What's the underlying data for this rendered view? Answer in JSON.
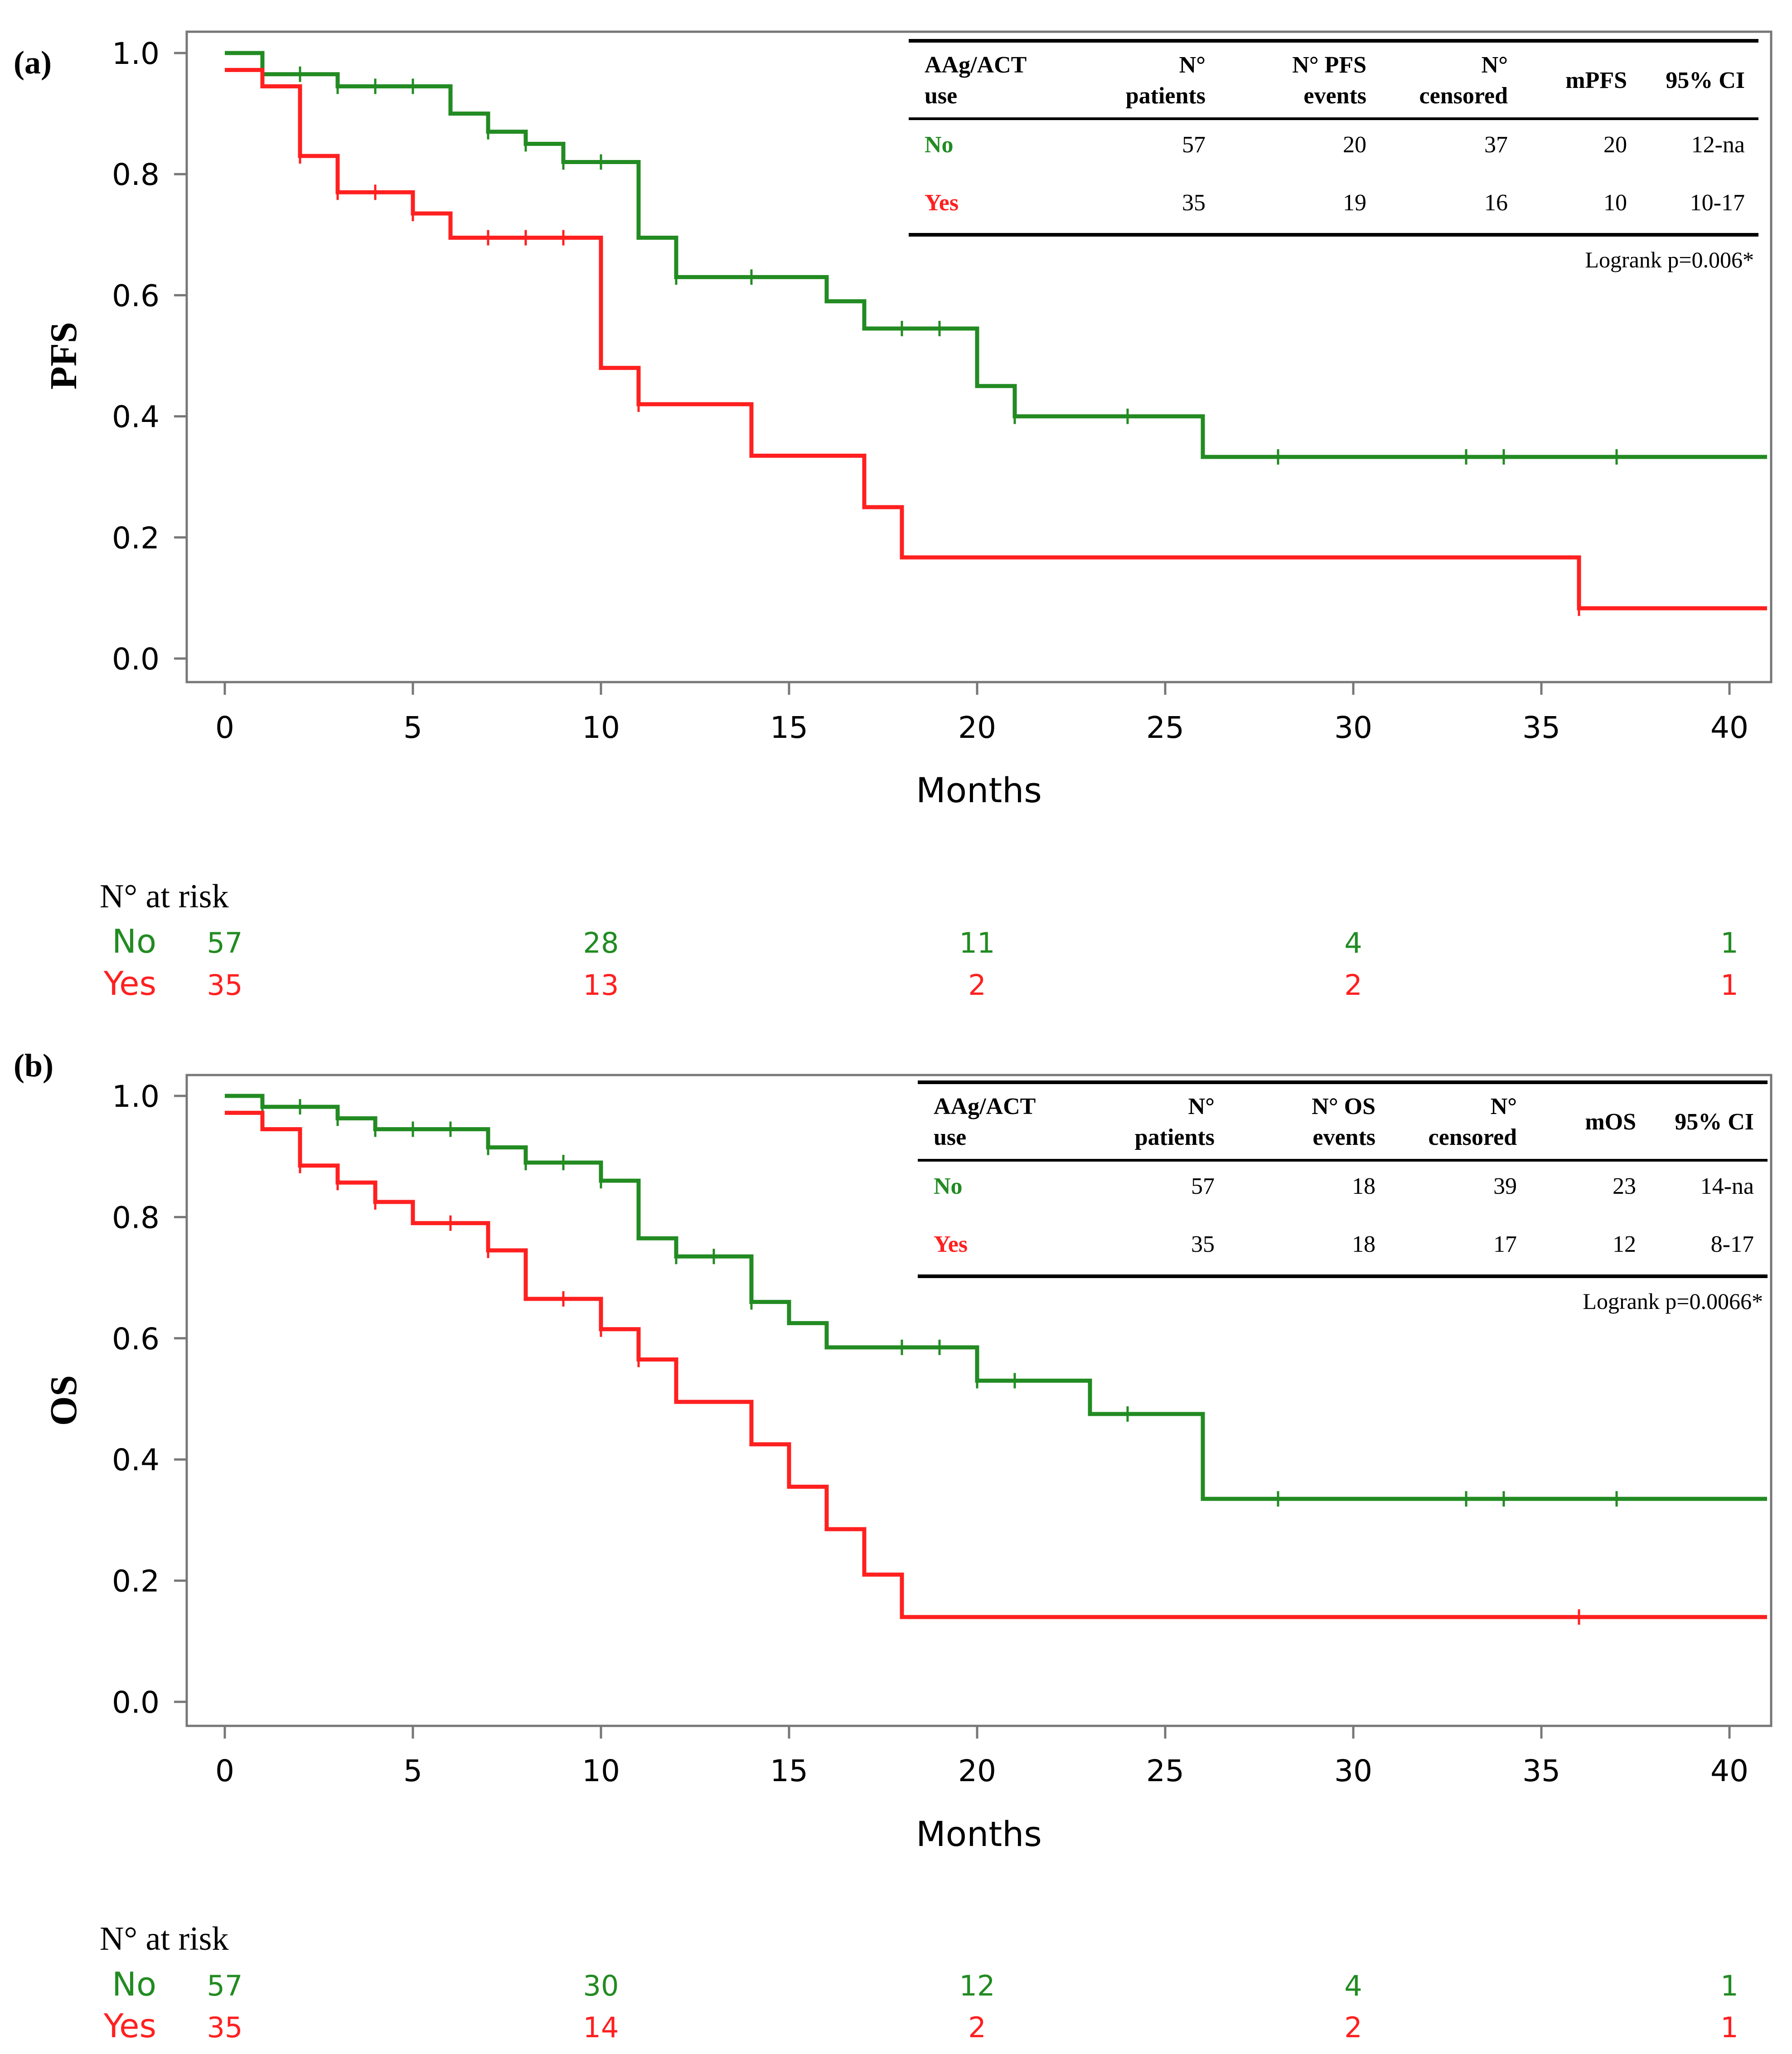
{
  "colors": {
    "no": "#228B22",
    "yes": "#FF2020",
    "axis": "#777777",
    "text": "#000000"
  },
  "chart_data": [
    {
      "panel_label": "(a)",
      "type": "line",
      "subtype": "kaplan-meier",
      "title": "",
      "xlabel": "Months",
      "ylabel": "PFS",
      "xlim": [
        0,
        41
      ],
      "ylim": [
        0,
        1
      ],
      "xticks": [
        0,
        5,
        10,
        15,
        20,
        25,
        30,
        35,
        40
      ],
      "yticks": [
        "0.0",
        "0.2",
        "0.4",
        "0.6",
        "0.8",
        "1.0"
      ],
      "series": [
        {
          "name": "No",
          "color_key": "no",
          "steps": [
            [
              0,
              1.0
            ],
            [
              1,
              0.965
            ],
            [
              3,
              0.945
            ],
            [
              6,
              0.9
            ],
            [
              7,
              0.87
            ],
            [
              8,
              0.85
            ],
            [
              9,
              0.82
            ],
            [
              11,
              0.695
            ],
            [
              12,
              0.63
            ],
            [
              16,
              0.59
            ],
            [
              17,
              0.545
            ],
            [
              20,
              0.45
            ],
            [
              21,
              0.4
            ],
            [
              26,
              0.333
            ],
            [
              41,
              0.333
            ]
          ],
          "censored": [
            1,
            2,
            3,
            4,
            5,
            7,
            8,
            9,
            10,
            12,
            14,
            18,
            19,
            21,
            24,
            28,
            33,
            34,
            37
          ]
        },
        {
          "name": "Yes",
          "color_key": "yes",
          "steps": [
            [
              0,
              0.972
            ],
            [
              1,
              0.945
            ],
            [
              2,
              0.83
            ],
            [
              3,
              0.77
            ],
            [
              5,
              0.735
            ],
            [
              6,
              0.695
            ],
            [
              10,
              0.48
            ],
            [
              11,
              0.42
            ],
            [
              14,
              0.335
            ],
            [
              17,
              0.25
            ],
            [
              18,
              0.167
            ],
            [
              36,
              0.083
            ],
            [
              41,
              0.083
            ]
          ],
          "censored": [
            2,
            3,
            4,
            5,
            7,
            8,
            9,
            11,
            36
          ]
        }
      ],
      "table": {
        "headers": [
          {
            "l1": "AAg/ACT",
            "l2": "use"
          },
          {
            "l1": "N°",
            "l2": "patients"
          },
          {
            "l1": "N° PFS",
            "l2": "events"
          },
          {
            "l1": "N°",
            "l2": "censored"
          },
          {
            "l1": "mPFS",
            "l2": ""
          },
          {
            "l1": "95% CI",
            "l2": ""
          }
        ],
        "rows": [
          {
            "group": "No",
            "color_key": "no",
            "cells": [
              "57",
              "20",
              "37",
              "20",
              "12-na"
            ]
          },
          {
            "group": "Yes",
            "color_key": "yes",
            "cells": [
              "35",
              "19",
              "16",
              "10",
              "10-17"
            ]
          }
        ],
        "logrank": "Logrank p=0.006*"
      },
      "risk": {
        "title": "N° at risk",
        "times": [
          0,
          10,
          20,
          30,
          40
        ],
        "rows": [
          {
            "group": "No",
            "color_key": "no",
            "values": [
              "57",
              "28",
              "11",
              "4",
              "1"
            ]
          },
          {
            "group": "Yes",
            "color_key": "yes",
            "values": [
              "35",
              "13",
              "2",
              "2",
              "1"
            ]
          }
        ]
      }
    },
    {
      "panel_label": "(b)",
      "type": "line",
      "subtype": "kaplan-meier",
      "title": "",
      "xlabel": "Months",
      "ylabel": "OS",
      "xlim": [
        0,
        41
      ],
      "ylim": [
        0,
        1
      ],
      "xticks": [
        0,
        5,
        10,
        15,
        20,
        25,
        30,
        35,
        40
      ],
      "yticks": [
        "0.0",
        "0.2",
        "0.4",
        "0.6",
        "0.8",
        "1.0"
      ],
      "series": [
        {
          "name": "No",
          "color_key": "no",
          "steps": [
            [
              0,
              1.0
            ],
            [
              1,
              0.982
            ],
            [
              3,
              0.963
            ],
            [
              4,
              0.945
            ],
            [
              7,
              0.915
            ],
            [
              8,
              0.89
            ],
            [
              10,
              0.86
            ],
            [
              11,
              0.765
            ],
            [
              12,
              0.735
            ],
            [
              14,
              0.66
            ],
            [
              15,
              0.625
            ],
            [
              16,
              0.585
            ],
            [
              20,
              0.53
            ],
            [
              23,
              0.475
            ],
            [
              26,
              0.335
            ],
            [
              41,
              0.335
            ]
          ],
          "censored": [
            1,
            2,
            3,
            4,
            5,
            6,
            7,
            8,
            9,
            10,
            12,
            13,
            14,
            18,
            19,
            20,
            21,
            24,
            28,
            33,
            34,
            37
          ]
        },
        {
          "name": "Yes",
          "color_key": "yes",
          "steps": [
            [
              0,
              0.972
            ],
            [
              1,
              0.945
            ],
            [
              2,
              0.885
            ],
            [
              3,
              0.857
            ],
            [
              4,
              0.825
            ],
            [
              5,
              0.79
            ],
            [
              7,
              0.745
            ],
            [
              8,
              0.665
            ],
            [
              10,
              0.615
            ],
            [
              11,
              0.565
            ],
            [
              12,
              0.495
            ],
            [
              14,
              0.425
            ],
            [
              15,
              0.355
            ],
            [
              16,
              0.285
            ],
            [
              17,
              0.21
            ],
            [
              18,
              0.14
            ],
            [
              41,
              0.14
            ]
          ],
          "censored": [
            2,
            3,
            4,
            6,
            7,
            9,
            10,
            11,
            36
          ]
        }
      ],
      "table": {
        "headers": [
          {
            "l1": "AAg/ACT",
            "l2": "use"
          },
          {
            "l1": "N°",
            "l2": "patients"
          },
          {
            "l1": "N° OS",
            "l2": "events"
          },
          {
            "l1": "N°",
            "l2": "censored"
          },
          {
            "l1": "mOS",
            "l2": ""
          },
          {
            "l1": "95% CI",
            "l2": ""
          }
        ],
        "rows": [
          {
            "group": "No",
            "color_key": "no",
            "cells": [
              "57",
              "18",
              "39",
              "23",
              "14-na"
            ]
          },
          {
            "group": "Yes",
            "color_key": "yes",
            "cells": [
              "35",
              "18",
              "17",
              "12",
              "8-17"
            ]
          }
        ],
        "logrank": "Logrank p=0.0066*"
      },
      "risk": {
        "title": "N° at risk",
        "times": [
          0,
          10,
          20,
          30,
          40
        ],
        "rows": [
          {
            "group": "No",
            "color_key": "no",
            "values": [
              "57",
              "30",
              "12",
              "4",
              "1"
            ]
          },
          {
            "group": "Yes",
            "color_key": "yes",
            "values": [
              "35",
              "14",
              "2",
              "2",
              "1"
            ]
          }
        ]
      }
    }
  ]
}
